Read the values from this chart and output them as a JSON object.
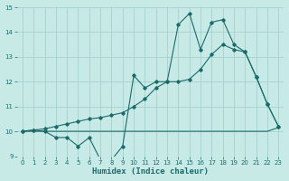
{
  "title": "",
  "xlabel": "Humidex (Indice chaleur)",
  "xlim": [
    -0.5,
    23.5
  ],
  "ylim": [
    9,
    15
  ],
  "yticks": [
    9,
    10,
    11,
    12,
    13,
    14,
    15
  ],
  "xticks": [
    0,
    1,
    2,
    3,
    4,
    5,
    6,
    7,
    8,
    9,
    10,
    11,
    12,
    13,
    14,
    15,
    16,
    17,
    18,
    19,
    20,
    21,
    22,
    23
  ],
  "bg_color": "#c8eae6",
  "grid_color": "#a0cdca",
  "line_color": "#1a6b6b",
  "line1_x": [
    0,
    1,
    2,
    3,
    4,
    5,
    6,
    7,
    8,
    9,
    10,
    11,
    12,
    13,
    14,
    15,
    16,
    17,
    18,
    19,
    20,
    21,
    22,
    23
  ],
  "line1_y": [
    10.0,
    10.05,
    10.0,
    9.75,
    9.75,
    9.4,
    9.75,
    8.85,
    8.85,
    9.4,
    12.25,
    11.75,
    12.0,
    12.0,
    14.3,
    14.75,
    13.3,
    14.4,
    14.5,
    13.5,
    13.2,
    12.2,
    11.1,
    10.2
  ],
  "line2_x": [
    0,
    1,
    2,
    3,
    4,
    5,
    6,
    7,
    8,
    9,
    10,
    11,
    12,
    13,
    14,
    15,
    16,
    17,
    18,
    19,
    20,
    21,
    22,
    23
  ],
  "line2_y": [
    10.0,
    10.0,
    10.0,
    10.0,
    10.0,
    10.0,
    10.0,
    10.0,
    10.0,
    10.0,
    10.0,
    10.0,
    10.0,
    10.0,
    10.0,
    10.0,
    10.0,
    10.0,
    10.0,
    10.0,
    10.0,
    10.0,
    10.0,
    10.15
  ],
  "line3_x": [
    0,
    1,
    2,
    3,
    4,
    5,
    6,
    7,
    8,
    9,
    10,
    11,
    12,
    13,
    14,
    15,
    16,
    17,
    18,
    19,
    20,
    21,
    22,
    23
  ],
  "line3_y": [
    10.0,
    10.05,
    10.1,
    10.2,
    10.3,
    10.4,
    10.5,
    10.55,
    10.65,
    10.75,
    11.0,
    11.3,
    11.75,
    12.0,
    12.0,
    12.1,
    12.5,
    13.1,
    13.5,
    13.3,
    13.2,
    12.2,
    11.1,
    10.2
  ]
}
